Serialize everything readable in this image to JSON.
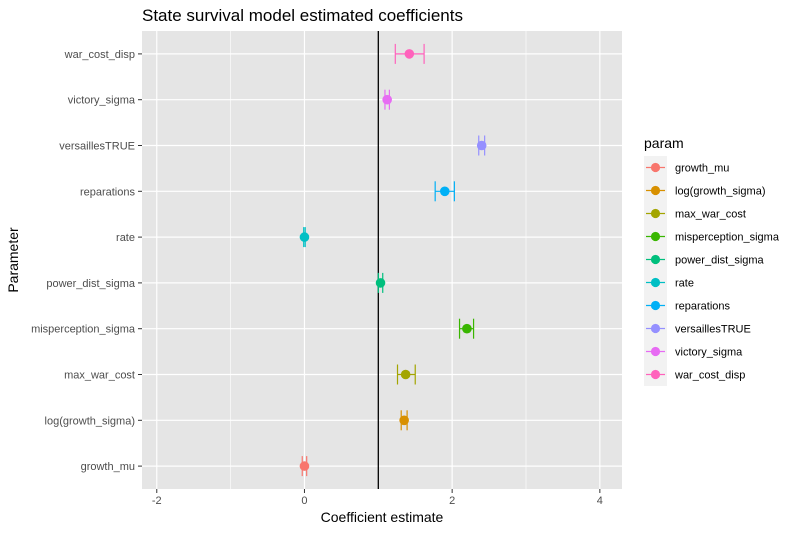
{
  "chart_data": {
    "type": "scatter",
    "title": "State survival model estimated coefficients",
    "xlabel": "Coefficient estimate",
    "ylabel": "Parameter",
    "xlim": [
      -2.2,
      4.3
    ],
    "x_ticks": [
      -2,
      0,
      2,
      4
    ],
    "x_tick_labels": [
      "-2",
      "0",
      "2",
      "4"
    ],
    "reference_line": 1,
    "grid": true,
    "legend": {
      "title": "param",
      "position": "right"
    },
    "categories": [
      "growth_mu",
      "log(growth_sigma)",
      "max_war_cost",
      "misperception_sigma",
      "power_dist_sigma",
      "rate",
      "reparations",
      "versaillesTRUE",
      "victory_sigma",
      "war_cost_disp"
    ],
    "series": [
      {
        "name": "growth_mu",
        "x": 0.0,
        "lower": -0.03,
        "upper": 0.03,
        "color": "#F8766D"
      },
      {
        "name": "log(growth_sigma)",
        "x": 1.35,
        "lower": 1.31,
        "upper": 1.39,
        "color": "#D89000"
      },
      {
        "name": "max_war_cost",
        "x": 1.37,
        "lower": 1.26,
        "upper": 1.5,
        "color": "#A3A500"
      },
      {
        "name": "misperception_sigma",
        "x": 2.2,
        "lower": 2.1,
        "upper": 2.29,
        "color": "#39B600"
      },
      {
        "name": "power_dist_sigma",
        "x": 1.03,
        "lower": 1.0,
        "upper": 1.06,
        "color": "#00BF7D"
      },
      {
        "name": "rate",
        "x": 0.0,
        "lower": -0.01,
        "upper": 0.01,
        "color": "#00BFC4"
      },
      {
        "name": "reparations",
        "x": 1.9,
        "lower": 1.77,
        "upper": 2.03,
        "color": "#00B0F6"
      },
      {
        "name": "versaillesTRUE",
        "x": 2.4,
        "lower": 2.36,
        "upper": 2.44,
        "color": "#9590FF"
      },
      {
        "name": "victory_sigma",
        "x": 1.12,
        "lower": 1.09,
        "upper": 1.15,
        "color": "#E76BF3"
      },
      {
        "name": "war_cost_disp",
        "x": 1.42,
        "lower": 1.23,
        "upper": 1.62,
        "color": "#FF62BC"
      }
    ]
  },
  "colors": {
    "panel_background": "#E5E5E5",
    "grid": "#FFFFFF",
    "reference_line": "#000000",
    "legend_key_background": "#F2F2F2"
  }
}
